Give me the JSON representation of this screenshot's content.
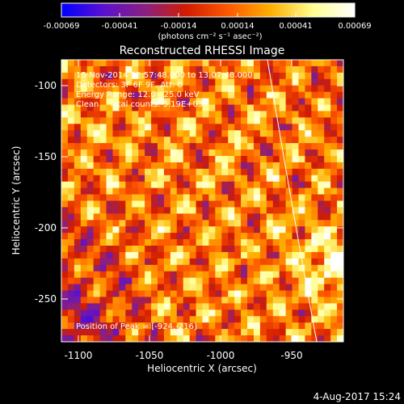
{
  "chart_data": {
    "type": "heatmap",
    "title": "Reconstructed RHESSI Image",
    "colorbar": {
      "ticks": [
        "-0.00069",
        "-0.00041",
        "-0.00014",
        "0.00014",
        "0.00041",
        "0.00069"
      ],
      "units_label": "(photons cm⁻² s⁻¹ asec⁻²)",
      "range": [
        -0.00069,
        0.00069
      ],
      "colors": [
        "#0000ff",
        "#5a10d0",
        "#8a2080",
        "#d21c00",
        "#ff5a00",
        "#ffb000",
        "#ffff90",
        "#ffffff"
      ]
    },
    "xlabel": "Heliocentric X (arcsec)",
    "ylabel": "Heliocentric Y (arcsec)",
    "xlim": [
      -1112,
      -914
    ],
    "ylim": [
      -274,
      -76
    ],
    "x_ticks": [
      "-1100",
      "-1050",
      "-1000",
      "-950"
    ],
    "y_ticks": [
      "-100",
      "-150",
      "-200",
      "-250"
    ],
    "annotations": [
      "15-Nov-2014 12:57:48.000 to 13:07:48.000",
      "Detectors: 3F 6F 9F, Att: 0",
      "Energy Range: 12.0 - 25.0 keV",
      "Clean    Total counts: 5.19E+03"
    ],
    "peak_label": "Position of Peak = [-924,-216]",
    "peak_position": [
      -924,
      -216
    ],
    "limb": true
  },
  "footer": {
    "timestamp": "4-Aug-2017 15:24"
  }
}
